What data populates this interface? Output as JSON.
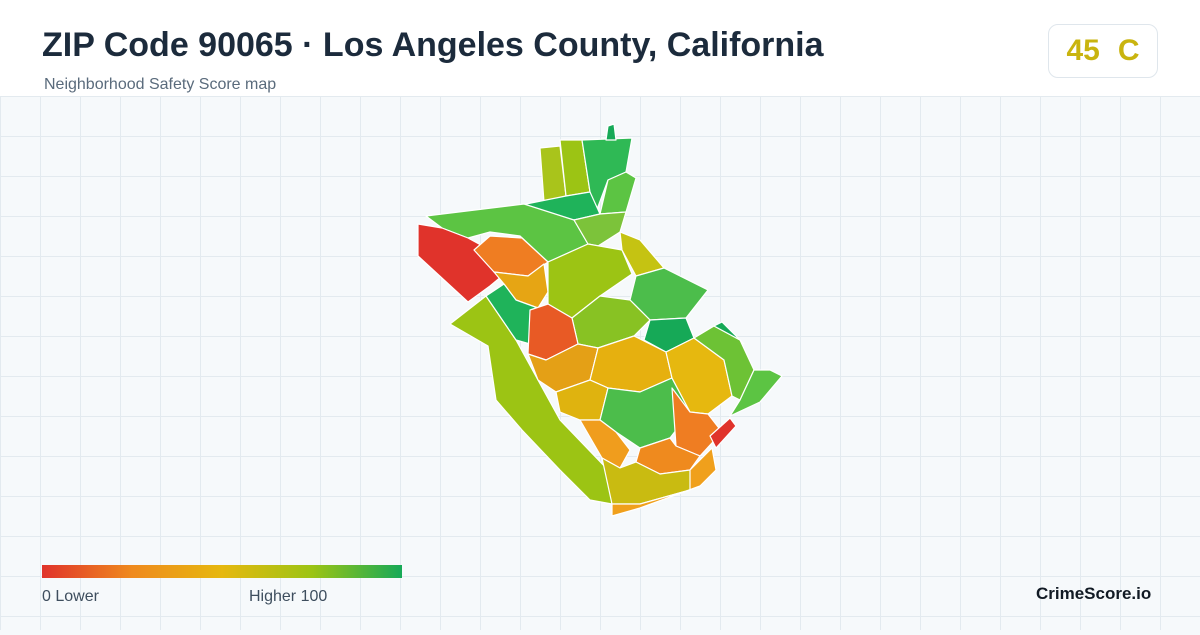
{
  "header": {
    "title": "ZIP Code 90065 · Los Angeles County, California",
    "subtitle": "Neighborhood Safety Score map"
  },
  "score": {
    "value": "45",
    "grade": "C",
    "color": "#c9b40f"
  },
  "legend": {
    "low_label": "0  Lower",
    "high_label": "Higher  100",
    "colors": [
      "#e0332b",
      "#ef8a1e",
      "#e6b80f",
      "#9cc414",
      "#16a957"
    ]
  },
  "brand": {
    "name": "CrimeScore.io"
  }
}
